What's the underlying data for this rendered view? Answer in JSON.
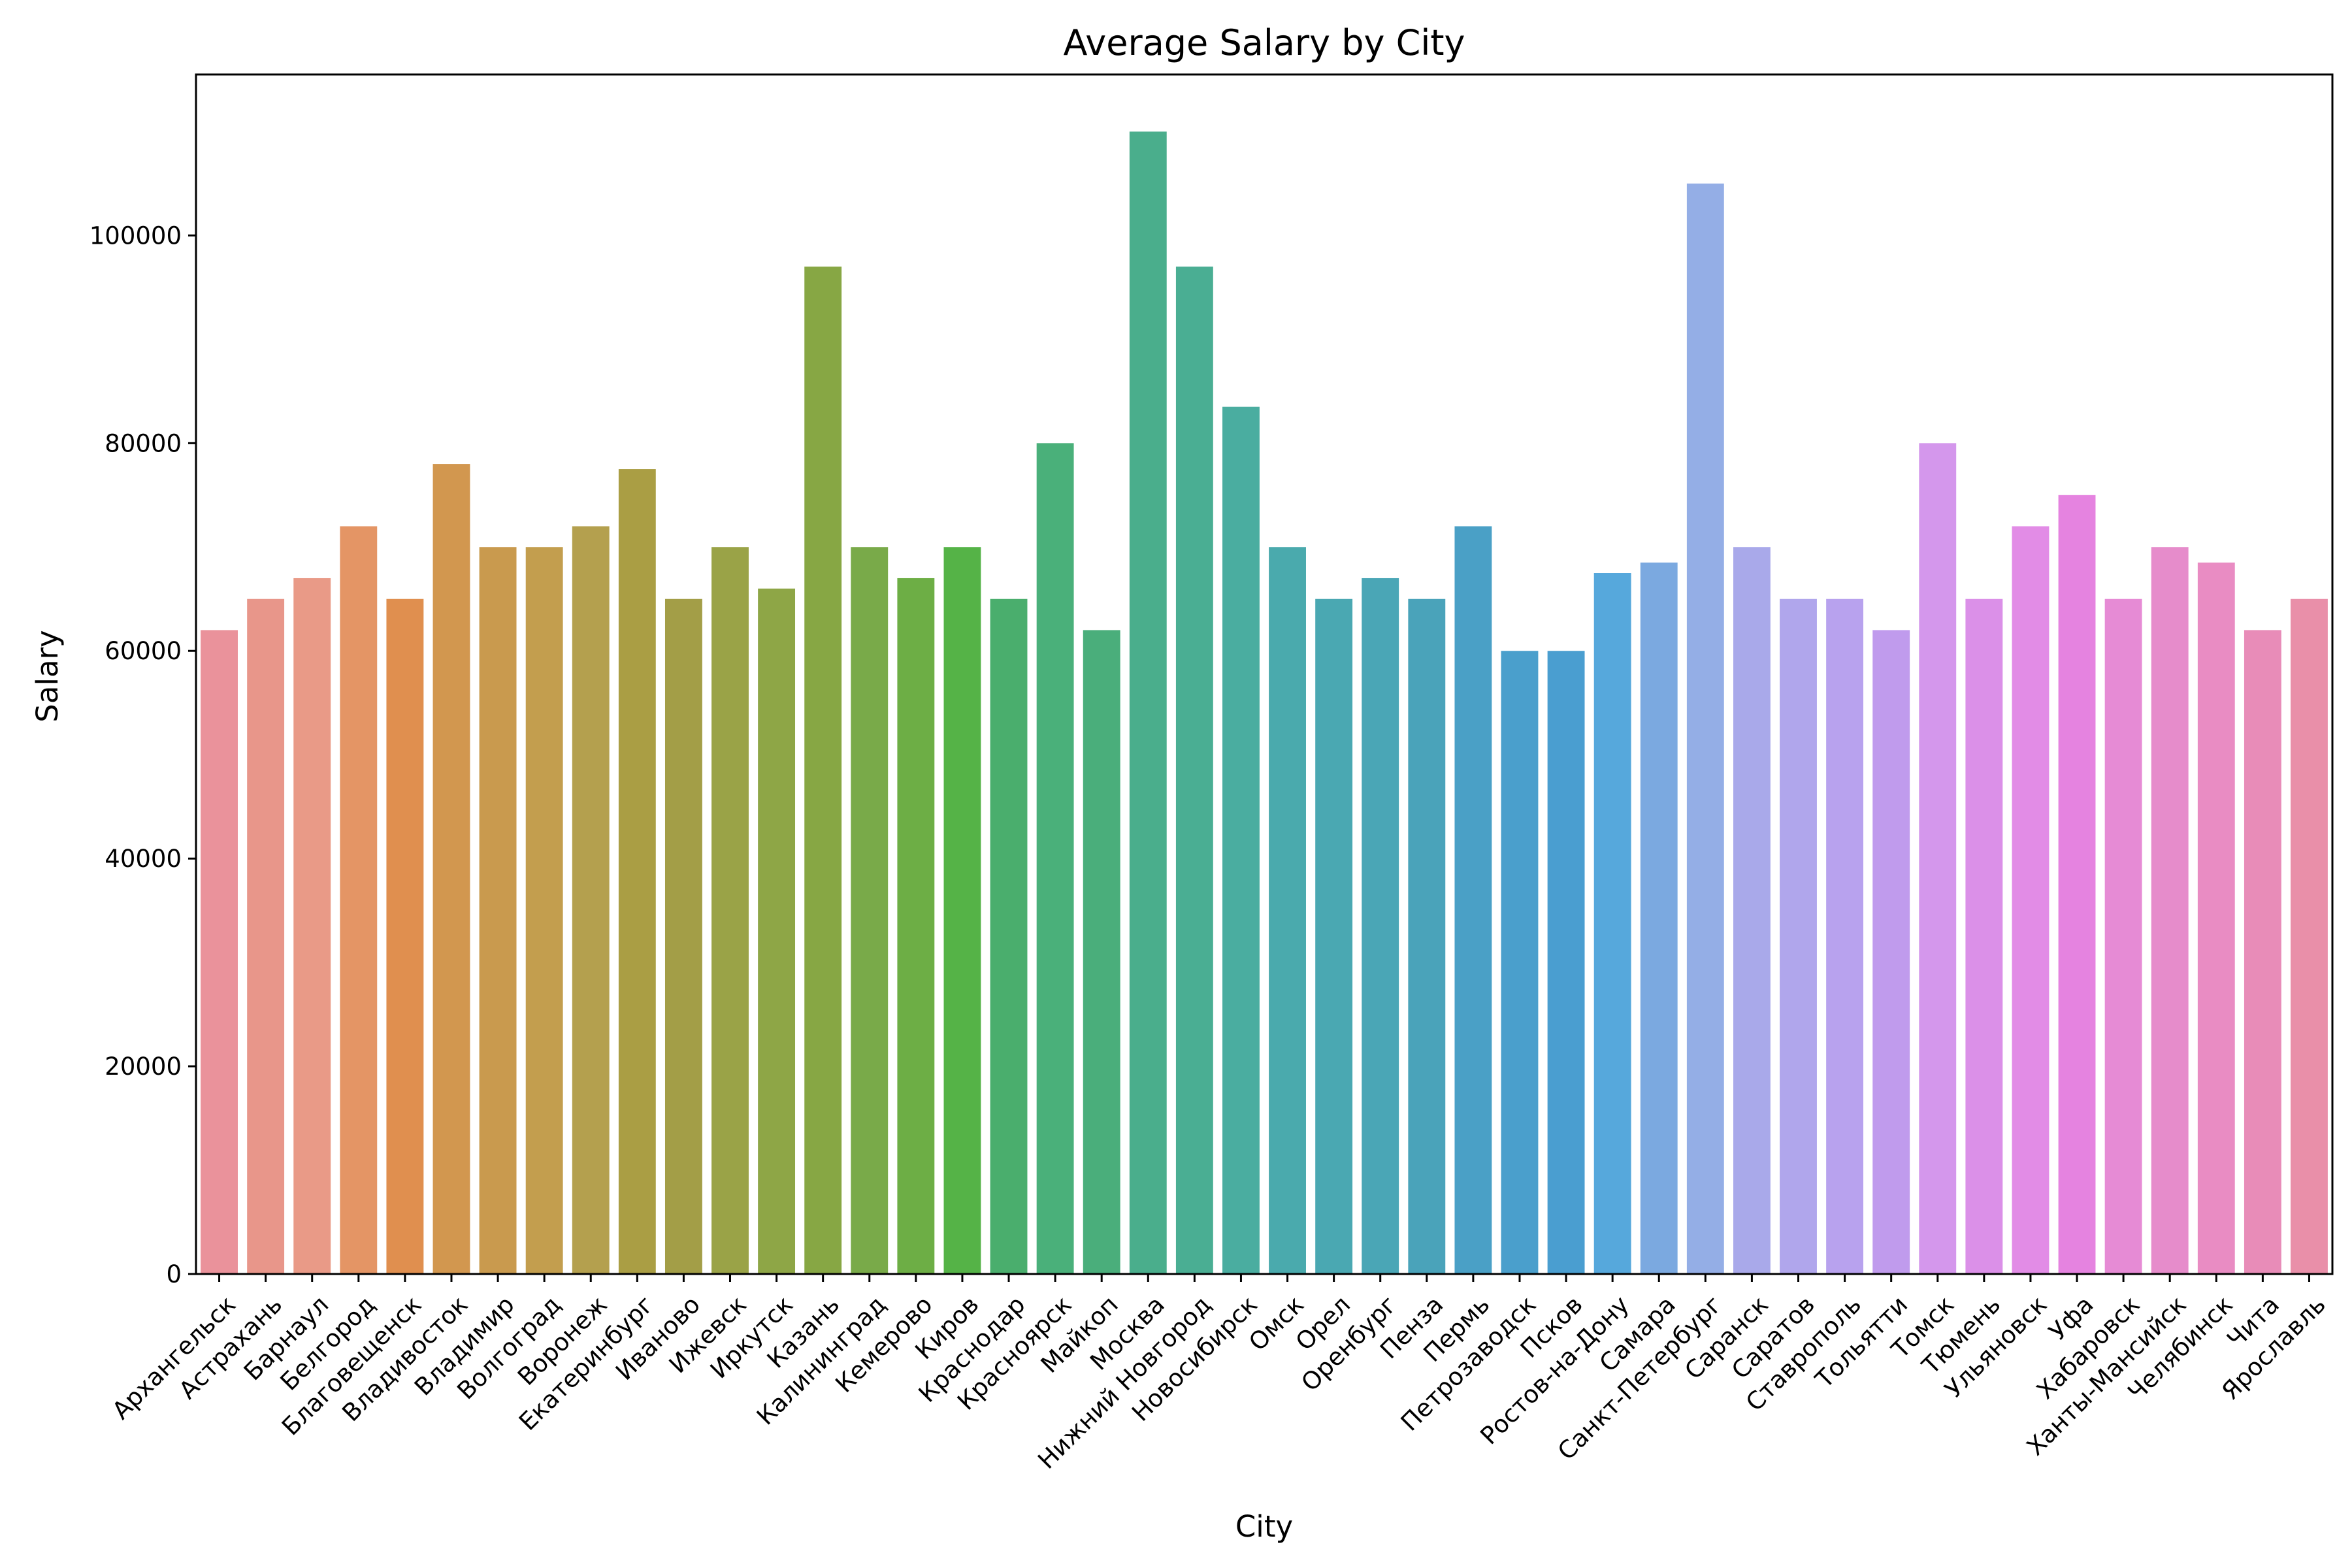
{
  "chart_data": {
    "type": "bar",
    "title": "Average Salary by City",
    "xlabel": "City",
    "ylabel": "Salary",
    "ylim": [
      0,
      115500
    ],
    "yticks": [
      0,
      20000,
      40000,
      60000,
      80000,
      100000
    ],
    "ytick_labels": [
      "0",
      "20000",
      "40000",
      "60000",
      "80000",
      "100000"
    ],
    "grid": false,
    "categories": [
      "Архангельск",
      "Астрахань",
      "Барнаул",
      "Белгород",
      "Благовещенск",
      "Владивосток",
      "Владимир",
      "Волгоград",
      "Воронеж",
      "Екатеринбург",
      "Иваново",
      "Ижевск",
      "Иркутск",
      "Казань",
      "Калининград",
      "Кемерово",
      "Киров",
      "Краснодар",
      "Красноярск",
      "Майкоп",
      "Москва",
      "Нижний Новгород",
      "Новосибирск",
      "Омск",
      "Орел",
      "Оренбург",
      "Пенза",
      "Пермь",
      "Петрозаводск",
      "Псков",
      "Ростов-на-Дону",
      "Самара",
      "Санкт-Петербург",
      "Саранск",
      "Саратов",
      "Ставрополь",
      "Тольятти",
      "Томск",
      "Тюмень",
      "Ульяновск",
      "Уфа",
      "Хабаровск",
      "Ханты-Мансийск",
      "Челябинск",
      "Чита",
      "Ярославль"
    ],
    "values": [
      62000,
      65000,
      67000,
      72000,
      65000,
      78000,
      70000,
      70000,
      72000,
      77500,
      65000,
      70000,
      66000,
      97000,
      70000,
      67000,
      70000,
      65000,
      80000,
      62000,
      110000,
      97000,
      83500,
      70000,
      65000,
      67000,
      65000,
      72000,
      60000,
      60000,
      67500,
      68500,
      105000,
      70000,
      65000,
      65000,
      62000,
      80000,
      65000,
      72000,
      75000,
      65000,
      70000,
      68500,
      62000,
      65000
    ],
    "colors": [
      "#ea929b",
      "#e8968a",
      "#e99a87",
      "#e49565",
      "#e08f4f",
      "#d2974f",
      "#c99a4e",
      "#c39e4e",
      "#b4a04e",
      "#aa9e44",
      "#a39e47",
      "#9aa347",
      "#8ea646",
      "#87a744",
      "#79aa49",
      "#6dae45",
      "#55b347",
      "#4aae6d",
      "#4ab07a",
      "#4aae7b",
      "#4aae8c",
      "#4aae93",
      "#4aada0",
      "#4aaaad",
      "#4aa8b2",
      "#4aa6b6",
      "#4aa3ba",
      "#4aa0c6",
      "#4a9fcc",
      "#4a9ed0",
      "#56a8dc",
      "#7ba9e0",
      "#94aee6",
      "#a9a9ea",
      "#b0a6ec",
      "#b8a2ee",
      "#c09bed",
      "#d497ec",
      "#db90e8",
      "#e28ce6",
      "#e583e0",
      "#e68bd5",
      "#e68ccb",
      "#e98cc3",
      "#e88cb8",
      "#e98fa9"
    ]
  }
}
